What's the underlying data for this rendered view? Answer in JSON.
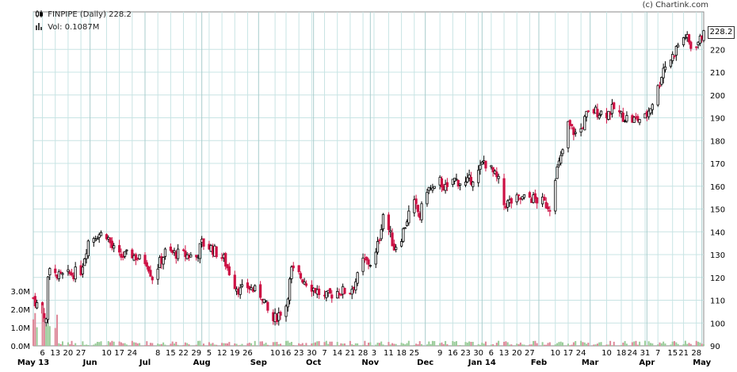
{
  "credit": "(c) Chartink.com",
  "legend": {
    "price_name": "FINPIPE (Daily)",
    "price_value": "228.2",
    "volume_name": "Vol:",
    "volume_value": "0.1087M"
  },
  "last_price_label": "228.2",
  "colors": {
    "up": "#000000",
    "down": "#cc1144",
    "vol_up": "#99cc99",
    "vol_down": "#dd8899",
    "grid": "#c8e4e4"
  },
  "chart_data": {
    "type": "candlestick",
    "title": "FINPIPE (Daily) 228.2",
    "y_axis": {
      "ylim": [
        90,
        228
      ],
      "ticks": [
        90,
        100,
        110,
        120,
        130,
        140,
        150,
        160,
        170,
        180,
        190,
        200,
        210,
        220
      ],
      "side": "right"
    },
    "volume_axis": {
      "unit": "M",
      "ticks": [
        "0.0M",
        "1.0M",
        "2.0M",
        "3.0M"
      ],
      "ylim": [
        0,
        3.2
      ]
    },
    "x_range": [
      "2013-05-01",
      "2014-05-02"
    ],
    "month_labels": [
      {
        "date": "2013-05-01",
        "label": "May 13"
      },
      {
        "date": "2013-06-01",
        "label": "Jun"
      },
      {
        "date": "2013-07-01",
        "label": "Jul"
      },
      {
        "date": "2013-08-01",
        "label": "Aug"
      },
      {
        "date": "2013-09-01",
        "label": "Sep"
      },
      {
        "date": "2013-10-01",
        "label": "Oct"
      },
      {
        "date": "2013-11-01",
        "label": "Nov"
      },
      {
        "date": "2013-12-01",
        "label": "Dec"
      },
      {
        "date": "2014-01-01",
        "label": "Jan 14"
      },
      {
        "date": "2014-02-01",
        "label": "Feb"
      },
      {
        "date": "2014-03-01",
        "label": "Mar"
      },
      {
        "date": "2014-04-01",
        "label": "Apr"
      },
      {
        "date": "2014-05-01",
        "label": "May"
      }
    ],
    "day_labels": [
      {
        "date": "2013-05-06",
        "label": "6"
      },
      {
        "date": "2013-05-13",
        "label": "13"
      },
      {
        "date": "2013-05-20",
        "label": "20"
      },
      {
        "date": "2013-05-27",
        "label": "27"
      },
      {
        "date": "2013-06-10",
        "label": "10"
      },
      {
        "date": "2013-06-17",
        "label": "17"
      },
      {
        "date": "2013-06-24",
        "label": "24"
      },
      {
        "date": "2013-07-08",
        "label": "8"
      },
      {
        "date": "2013-07-15",
        "label": "15"
      },
      {
        "date": "2013-07-22",
        "label": "22"
      },
      {
        "date": "2013-07-29",
        "label": "29"
      },
      {
        "date": "2013-08-05",
        "label": "5"
      },
      {
        "date": "2013-08-12",
        "label": "12"
      },
      {
        "date": "2013-08-19",
        "label": "19"
      },
      {
        "date": "2013-08-26",
        "label": "26"
      },
      {
        "date": "2013-09-10",
        "label": "10"
      },
      {
        "date": "2013-09-16",
        "label": "16"
      },
      {
        "date": "2013-09-23",
        "label": "23"
      },
      {
        "date": "2013-09-30",
        "label": "30"
      },
      {
        "date": "2013-10-07",
        "label": "7"
      },
      {
        "date": "2013-10-14",
        "label": "14"
      },
      {
        "date": "2013-10-21",
        "label": "21"
      },
      {
        "date": "2013-10-28",
        "label": "28"
      },
      {
        "date": "2013-11-03",
        "label": "3"
      },
      {
        "date": "2013-11-11",
        "label": "11"
      },
      {
        "date": "2013-11-18",
        "label": "18"
      },
      {
        "date": "2013-11-25",
        "label": "25"
      },
      {
        "date": "2013-12-09",
        "label": "9"
      },
      {
        "date": "2013-12-16",
        "label": "16"
      },
      {
        "date": "2013-12-23",
        "label": "23"
      },
      {
        "date": "2013-12-30",
        "label": "30"
      },
      {
        "date": "2014-01-06",
        "label": "6"
      },
      {
        "date": "2014-01-13",
        "label": "13"
      },
      {
        "date": "2014-01-20",
        "label": "20"
      },
      {
        "date": "2014-01-27",
        "label": "27"
      },
      {
        "date": "2014-02-10",
        "label": "10"
      },
      {
        "date": "2014-02-17",
        "label": "17"
      },
      {
        "date": "2014-02-24",
        "label": "24"
      },
      {
        "date": "2014-03-10",
        "label": "10"
      },
      {
        "date": "2014-03-18",
        "label": "18"
      },
      {
        "date": "2014-03-24",
        "label": "24"
      },
      {
        "date": "2014-03-31",
        "label": "31"
      },
      {
        "date": "2014-04-07",
        "label": "7"
      },
      {
        "date": "2014-04-15",
        "label": "15"
      },
      {
        "date": "2014-04-21",
        "label": "21"
      },
      {
        "date": "2014-04-28",
        "label": "28"
      }
    ],
    "price_path": [
      [
        "2013-05-01",
        111
      ],
      [
        "2013-05-06",
        104
      ],
      [
        "2013-05-08",
        101
      ],
      [
        "2013-05-09",
        120
      ],
      [
        "2013-05-10",
        126
      ],
      [
        "2013-05-14",
        120
      ],
      [
        "2013-05-20",
        121
      ],
      [
        "2013-05-27",
        123
      ],
      [
        "2013-05-31",
        136
      ],
      [
        "2013-06-05",
        139
      ],
      [
        "2013-06-10",
        139
      ],
      [
        "2013-06-13",
        133
      ],
      [
        "2013-06-17",
        129
      ],
      [
        "2013-06-24",
        130
      ],
      [
        "2013-06-28",
        128
      ],
      [
        "2013-07-02",
        127
      ],
      [
        "2013-07-05",
        120
      ],
      [
        "2013-07-08",
        125
      ],
      [
        "2013-07-12",
        131
      ],
      [
        "2013-07-22",
        130
      ],
      [
        "2013-07-29",
        129
      ],
      [
        "2013-08-01",
        135
      ],
      [
        "2013-08-06",
        133
      ],
      [
        "2013-08-13",
        128
      ],
      [
        "2013-08-19",
        117
      ],
      [
        "2013-08-22",
        114
      ],
      [
        "2013-08-26",
        116
      ],
      [
        "2013-09-03",
        112
      ],
      [
        "2013-09-06",
        105
      ],
      [
        "2013-09-09",
        101
      ],
      [
        "2013-09-12",
        104
      ],
      [
        "2013-09-16",
        108
      ],
      [
        "2013-09-19",
        123
      ],
      [
        "2013-09-23",
        121
      ],
      [
        "2013-09-30",
        116
      ],
      [
        "2013-10-07",
        111
      ],
      [
        "2013-10-14",
        114
      ],
      [
        "2013-10-21",
        114
      ],
      [
        "2013-10-25",
        120
      ],
      [
        "2013-10-28",
        127
      ],
      [
        "2013-11-03",
        126
      ],
      [
        "2013-11-06",
        138
      ],
      [
        "2013-11-08",
        148
      ],
      [
        "2013-11-11",
        141
      ],
      [
        "2013-11-14",
        133
      ],
      [
        "2013-11-18",
        138
      ],
      [
        "2013-11-22",
        148
      ],
      [
        "2013-11-25",
        152
      ],
      [
        "2013-11-28",
        147
      ],
      [
        "2013-12-02",
        159
      ],
      [
        "2013-12-06",
        158
      ],
      [
        "2013-12-09",
        162
      ],
      [
        "2013-12-13",
        158
      ],
      [
        "2013-12-16",
        163
      ],
      [
        "2013-12-23",
        161
      ],
      [
        "2013-12-30",
        166
      ],
      [
        "2014-01-02",
        171
      ],
      [
        "2014-01-06",
        167
      ],
      [
        "2014-01-10",
        162
      ],
      [
        "2014-01-13",
        152
      ],
      [
        "2014-01-20",
        154
      ],
      [
        "2014-01-27",
        155
      ],
      [
        "2014-02-03",
        153
      ],
      [
        "2014-02-07",
        151
      ],
      [
        "2014-02-10",
        165
      ],
      [
        "2014-02-13",
        172
      ],
      [
        "2014-02-17",
        187
      ],
      [
        "2014-02-21",
        183
      ],
      [
        "2014-02-24",
        185
      ],
      [
        "2014-02-27",
        191
      ],
      [
        "2014-03-03",
        193
      ],
      [
        "2014-03-10",
        192
      ],
      [
        "2014-03-14",
        194
      ],
      [
        "2014-03-18",
        191
      ],
      [
        "2014-03-24",
        189
      ],
      [
        "2014-03-31",
        190
      ],
      [
        "2014-04-03",
        195
      ],
      [
        "2014-04-07",
        203
      ],
      [
        "2014-04-10",
        212
      ],
      [
        "2014-04-15",
        217
      ],
      [
        "2014-04-18",
        222
      ],
      [
        "2014-04-22",
        226
      ],
      [
        "2014-04-25",
        221
      ],
      [
        "2014-04-30",
        224
      ],
      [
        "2014-05-02",
        228.2
      ]
    ]
  }
}
